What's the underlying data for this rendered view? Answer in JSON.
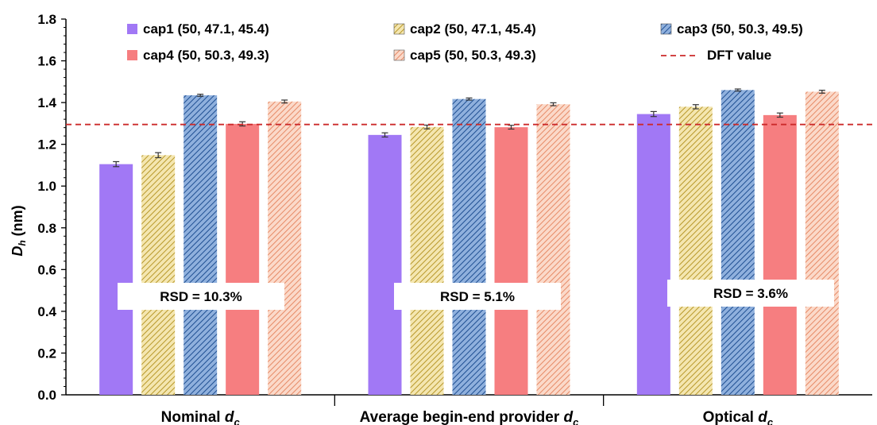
{
  "chart_data": {
    "type": "bar",
    "ylabel": {
      "main": "D",
      "sub": "h",
      "rest": " (nm)"
    },
    "ylim": [
      0,
      1.8
    ],
    "yticks": [
      "0.0",
      "0.2",
      "0.4",
      "0.6",
      "0.8",
      "1.0",
      "1.2",
      "1.4",
      "1.6",
      "1.8"
    ],
    "categories": [
      {
        "main": "Nominal ",
        "sym": "d",
        "sub": "c"
      },
      {
        "main": "Average begin-end provider ",
        "sym": "d",
        "sub": "c"
      },
      {
        "main": "Optical ",
        "sym": "d",
        "sub": "c"
      }
    ],
    "series": [
      {
        "name": "cap1 (50, 47.1, 45.4)",
        "values": [
          1.105,
          1.245,
          1.345
        ],
        "errors": [
          0.012,
          0.01,
          0.012
        ],
        "color": "#a178f5",
        "pattern": "solid"
      },
      {
        "name": "cap2 (50, 47.1, 45.4)",
        "values": [
          1.148,
          1.283,
          1.38
        ],
        "errors": [
          0.012,
          0.009,
          0.01
        ],
        "color": "#dcc35a",
        "pattern": "hatch"
      },
      {
        "name": "cap3 (50, 50.3, 49.5)",
        "values": [
          1.435,
          1.417,
          1.46
        ],
        "errors": [
          0.005,
          0.005,
          0.005
        ],
        "color": "#3e6fb3",
        "pattern": "hatch"
      },
      {
        "name": "cap4 (50, 50.3, 49.3)",
        "values": [
          1.298,
          1.282,
          1.34
        ],
        "errors": [
          0.01,
          0.009,
          0.01
        ],
        "color": "#f67e80",
        "pattern": "solid"
      },
      {
        "name": "cap5 (50, 50.3, 49.3)",
        "values": [
          1.405,
          1.392,
          1.452
        ],
        "errors": [
          0.007,
          0.007,
          0.007
        ],
        "color": "#f0a586",
        "pattern": "hatch"
      }
    ],
    "reference_line": {
      "name": "DFT value",
      "value": 1.295,
      "color": "#cc2a2a",
      "style": "dashed"
    },
    "annotations": [
      "RSD = 10.3%",
      "RSD = 5.1%",
      "RSD = 3.6%"
    ],
    "legend_position": "top",
    "grid": false
  }
}
